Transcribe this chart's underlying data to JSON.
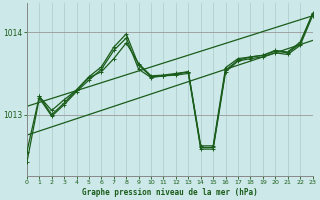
{
  "title": "Graphe pression niveau de la mer (hPa)",
  "bg_color": "#cce8e8",
  "line_color": "#1a5c1a",
  "grid_v_color": "#aacccc",
  "grid_h_color": "#999999",
  "spine_color": "#888888",
  "xlim": [
    0,
    23
  ],
  "ylim": [
    1012.25,
    1014.35
  ],
  "yticks": [
    1013,
    1014
  ],
  "ytick_labels": [
    "1013",
    "1014"
  ],
  "xticks": [
    0,
    1,
    2,
    3,
    4,
    5,
    6,
    7,
    8,
    9,
    10,
    11,
    12,
    13,
    14,
    15,
    16,
    17,
    18,
    19,
    20,
    21,
    22,
    23
  ],
  "figsize": [
    3.2,
    2.0
  ],
  "dpi": 100,
  "series": {
    "upper_diag": {
      "x": [
        0,
        23
      ],
      "y": [
        1013.1,
        1014.2
      ],
      "marker": false,
      "lw": 0.9
    },
    "lower_diag": {
      "x": [
        0,
        23
      ],
      "y": [
        1012.75,
        1013.9
      ],
      "marker": false,
      "lw": 0.9
    },
    "line_a": {
      "x": [
        0,
        1,
        2,
        3,
        4,
        5,
        6,
        7,
        8,
        9,
        10,
        11,
        12,
        13,
        14,
        15,
        16,
        17,
        18,
        19,
        20,
        21,
        22,
        23
      ],
      "y": [
        1012.55,
        1013.22,
        1013.05,
        1013.18,
        1013.3,
        1013.45,
        1013.52,
        1013.68,
        1013.87,
        1013.62,
        1013.47,
        1013.48,
        1013.5,
        1013.52,
        1012.62,
        1012.62,
        1013.57,
        1013.68,
        1013.7,
        1013.72,
        1013.78,
        1013.76,
        1013.88,
        1014.22
      ],
      "marker": true,
      "lw": 0.9
    },
    "line_b": {
      "x": [
        0,
        1,
        2,
        3,
        4,
        5,
        6,
        7,
        8,
        9,
        10,
        11,
        12,
        13,
        14,
        15,
        16,
        17,
        18,
        19,
        20,
        21,
        22,
        23
      ],
      "y": [
        1012.42,
        1013.2,
        1012.98,
        1013.12,
        1013.28,
        1013.42,
        1013.55,
        1013.78,
        1013.93,
        1013.55,
        1013.45,
        1013.47,
        1013.48,
        1013.5,
        1012.58,
        1012.58,
        1013.52,
        1013.65,
        1013.68,
        1013.7,
        1013.75,
        1013.73,
        1013.84,
        1014.2
      ],
      "marker": true,
      "lw": 0.9
    },
    "line_c": {
      "x": [
        1,
        2,
        3,
        4,
        5,
        6,
        7,
        8,
        9,
        10,
        11,
        12,
        13,
        14,
        15,
        16,
        17,
        18,
        19,
        20,
        21,
        22,
        23
      ],
      "y": [
        1013.22,
        1013.0,
        1013.14,
        1013.3,
        1013.46,
        1013.58,
        1013.82,
        1013.98,
        1013.6,
        1013.46,
        1013.47,
        1013.49,
        1013.52,
        1012.6,
        1012.6,
        1013.54,
        1013.66,
        1013.7,
        1013.72,
        1013.77,
        1013.75,
        1013.86,
        1014.23
      ],
      "marker": true,
      "lw": 0.9
    }
  }
}
